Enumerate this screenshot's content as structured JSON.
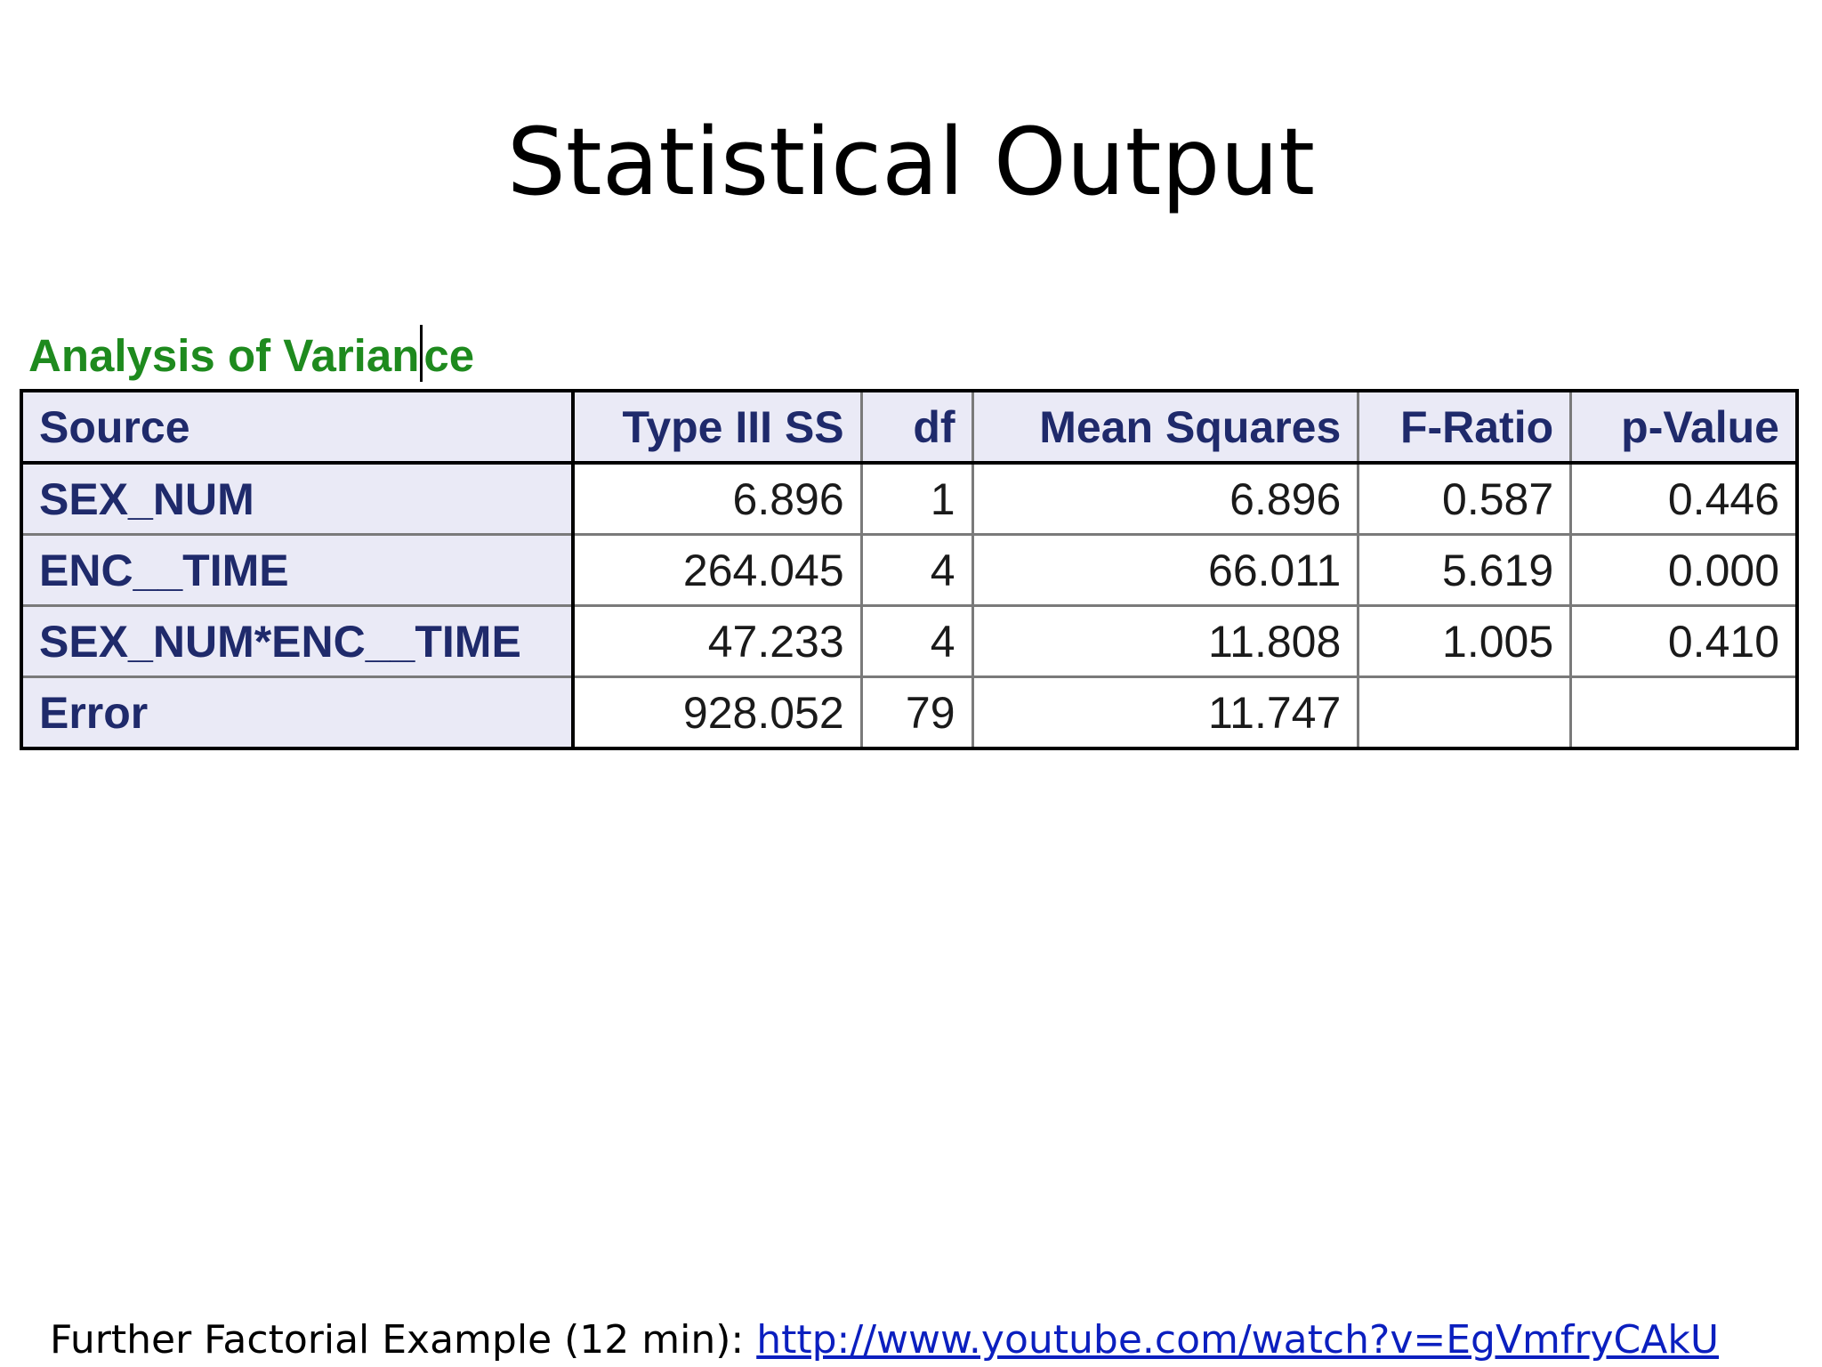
{
  "slide": {
    "title": "Statistical Output"
  },
  "anova": {
    "caption_before_cursor": "Analysis of Varian",
    "caption_after_cursor": "ce",
    "headers": [
      "Source",
      "Type III SS",
      "df",
      "Mean Squares",
      "F-Ratio",
      "p-Value"
    ],
    "rows": [
      [
        "SEX_NUM",
        "6.896",
        "1",
        "6.896",
        "0.587",
        "0.446"
      ],
      [
        "ENC__TIME",
        "264.045",
        "4",
        "66.011",
        "5.619",
        "0.000"
      ],
      [
        "SEX_NUM*ENC__TIME",
        "47.233",
        "4",
        "11.808",
        "1.005",
        "0.410"
      ],
      [
        "Error",
        "928.052",
        "79",
        "11.747",
        "",
        ""
      ]
    ]
  },
  "footer": {
    "label": "Further Factorial Example (12 min): ",
    "link_text": "http://www.youtube.com/watch?v=EgVmfryCAkU"
  },
  "colors": {
    "caption": "#1e8a1e",
    "header_text": "#1f2a6b",
    "header_bg": "#eaeaf6",
    "link": "#0b1fbf"
  }
}
